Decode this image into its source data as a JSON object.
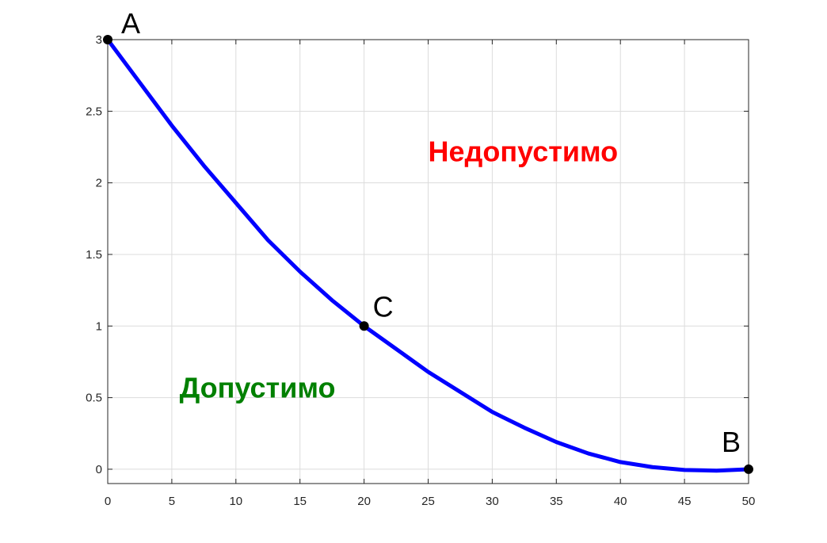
{
  "chart_data": {
    "type": "line",
    "title": "",
    "xlabel": "",
    "ylabel": "",
    "xlim": [
      0,
      50
    ],
    "ylim": [
      -0.1,
      3
    ],
    "xticks": [
      0,
      5,
      10,
      15,
      20,
      25,
      30,
      35,
      40,
      45,
      50
    ],
    "yticks": [
      0,
      0.5,
      1,
      1.5,
      2,
      2.5,
      3
    ],
    "xtick_labels": [
      "0",
      "5",
      "10",
      "15",
      "20",
      "25",
      "30",
      "35",
      "40",
      "45",
      "50"
    ],
    "ytick_labels": [
      "0",
      "0.5",
      "1",
      "1.5",
      "2",
      "2.5",
      "3"
    ],
    "grid": true,
    "series": [
      {
        "color": "#0000ff",
        "x": [
          0,
          2.5,
          5,
          7.5,
          10,
          12.5,
          15,
          17.5,
          20,
          22.5,
          25,
          27.5,
          30,
          32.5,
          35,
          37.5,
          40,
          42.5,
          45,
          47.5,
          50
        ],
        "y": [
          3.0,
          2.7,
          2.4,
          2.12,
          1.86,
          1.6,
          1.38,
          1.18,
          1.0,
          0.84,
          0.68,
          0.54,
          0.4,
          0.29,
          0.19,
          0.11,
          0.05,
          0.015,
          -0.005,
          -0.01,
          0.0
        ]
      }
    ],
    "points": [
      {
        "label": "A",
        "x": 0,
        "y": 3
      },
      {
        "label": "C",
        "x": 20,
        "y": 1
      },
      {
        "label": "B",
        "x": 50,
        "y": 0
      }
    ],
    "annotations": [
      {
        "text": "Недопустимо",
        "x": 25,
        "y": 2.15,
        "color": "#ff0000"
      },
      {
        "text": "Допустимо",
        "x": 5.6,
        "y": 0.5,
        "color": "#008000"
      }
    ]
  }
}
